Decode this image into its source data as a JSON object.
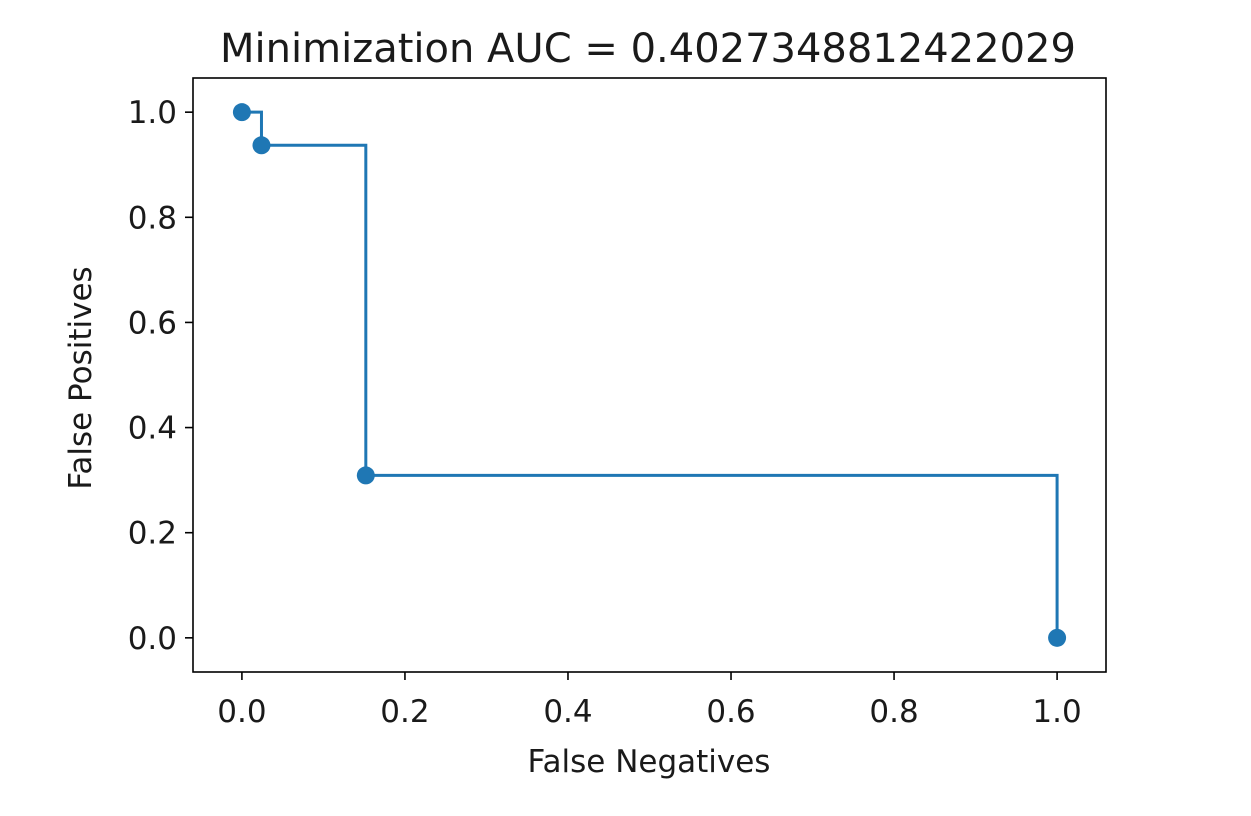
{
  "chart_data": {
    "type": "line",
    "title": "Minimization AUC = 0.4027348812422029",
    "xlabel": "False Negatives",
    "ylabel": "False Positives",
    "xlim": [
      -0.06,
      1.06
    ],
    "ylim": [
      -0.065,
      1.065
    ],
    "xticks": [
      0.0,
      0.2,
      0.4,
      0.6,
      0.8,
      1.0
    ],
    "yticks": [
      0.0,
      0.2,
      0.4,
      0.6,
      0.8,
      1.0
    ],
    "xtick_labels": [
      "0.0",
      "0.2",
      "0.4",
      "0.6",
      "0.8",
      "1.0"
    ],
    "ytick_labels": [
      "0.0",
      "0.2",
      "0.4",
      "0.6",
      "0.8",
      "1.0"
    ],
    "drawstyle": "steps-post",
    "grid": false,
    "series": [
      {
        "color": "#1f77b4",
        "marker": "circle",
        "x": [
          0.0,
          0.024,
          0.152,
          1.0
        ],
        "y": [
          1.0,
          0.937,
          0.309,
          0.0
        ]
      }
    ]
  }
}
